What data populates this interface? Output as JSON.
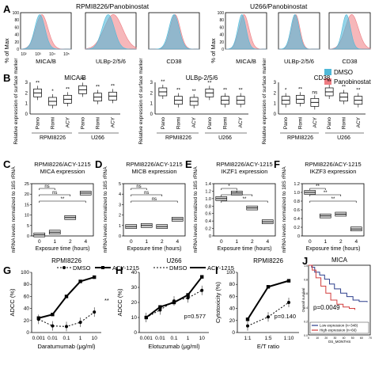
{
  "colors": {
    "dmso": "#4fb8d8",
    "pano": "#ee7c82",
    "drug": "#000000"
  },
  "panelA": {
    "letter": "A",
    "ylabel": "% of Max",
    "ticks_y": [
      "100",
      "80",
      "60",
      "40",
      "20",
      "0"
    ],
    "group1": {
      "title": "RPMI8226/Panobinostat",
      "markers": [
        "MICA/B",
        "ULBp-2/5/6",
        "CD38"
      ],
      "xticks": [
        "10²",
        "10³",
        "10⁴",
        "10⁵"
      ]
    },
    "group2": {
      "title": "U266/Panobinostat",
      "markers": [
        "MICA/B",
        "ULBp-2/5/6",
        "CD38"
      ]
    },
    "legend": [
      "DMSO",
      "Panobinostat"
    ]
  },
  "panelB": {
    "letter": "B",
    "ylabel": "Relative expression of surface marker",
    "categories": [
      "Pano",
      "Romi",
      "ACY",
      "Pano",
      "Romi",
      "ACY"
    ],
    "cell_lines": [
      "RPMI8226",
      "U266"
    ],
    "plots": [
      {
        "title": "MICA/B",
        "ylim": [
          0,
          3
        ],
        "ticks": [
          "3",
          "2",
          "1",
          "0"
        ],
        "medians": [
          2.0,
          1.2,
          1.4,
          2.3,
          1.6,
          1.7
        ],
        "sig": [
          "**",
          "*",
          "**",
          "**",
          "**",
          "**"
        ]
      },
      {
        "title": "ULBp-2/5/6",
        "ylim": [
          0,
          3
        ],
        "ticks": [
          "3",
          "2",
          "1",
          "0"
        ],
        "medians": [
          2.1,
          1.3,
          1.2,
          2.0,
          1.3,
          1.3
        ],
        "sig": [
          "**",
          "**",
          "**",
          "**",
          "**",
          "**"
        ]
      },
      {
        "title": "CD38",
        "ylim": [
          0,
          3
        ],
        "ticks": [
          "3",
          "2",
          "1",
          "0"
        ],
        "medians": [
          1.3,
          1.4,
          1.1,
          2.1,
          1.6,
          1.3
        ],
        "sig": [
          "*",
          "**",
          "ns",
          "**",
          "**",
          "**"
        ]
      }
    ]
  },
  "panelsCDEF": {
    "ylabel": "mRNA levels normalized to 18S rRNA",
    "xlabel": "Exposure time (hours)",
    "xcats": [
      "0",
      "1",
      "2",
      "4"
    ],
    "plots": [
      {
        "letter": "C",
        "title1": "RPMI8226/ACY-1215",
        "title2": "MICA expression",
        "ylim": [
          0,
          25
        ],
        "ticks": [
          "25",
          "20",
          "15",
          "10",
          "5",
          "0"
        ],
        "values": [
          0.5,
          1.8,
          8.8,
          20.5
        ],
        "brackets": [
          {
            "from": 0,
            "to": 1,
            "label": "ns"
          },
          {
            "from": 0,
            "to": 2,
            "label": "ns"
          },
          {
            "from": 0,
            "to": 3,
            "label": "**"
          }
        ]
      },
      {
        "letter": "D",
        "title1": "RPMI8226/ACY-1215",
        "title2": "MICB expression",
        "ylim": [
          0,
          5
        ],
        "ticks": [
          "5",
          "4",
          "3",
          "2",
          "1",
          "0"
        ],
        "values": [
          0.9,
          1.0,
          0.9,
          1.6
        ],
        "brackets": [
          {
            "from": 0,
            "to": 1,
            "label": "ns"
          },
          {
            "from": 0,
            "to": 2,
            "label": "ns"
          },
          {
            "from": 0,
            "to": 3,
            "label": "ns"
          }
        ]
      },
      {
        "letter": "E",
        "title1": "RPMI8226/ACY-1215",
        "title2": "IKZF1 expression",
        "ylim": [
          0,
          1.4
        ],
        "ticks": [
          "1.4",
          "1.2",
          "1.0",
          "0.8",
          "0.6",
          "0.4",
          "0.2",
          "0"
        ],
        "values": [
          1.0,
          1.15,
          0.75,
          0.38
        ],
        "brackets": [
          {
            "from": 0,
            "to": 1,
            "label": "*"
          },
          {
            "from": 0,
            "to": 2,
            "label": "*"
          },
          {
            "from": 0,
            "to": 3,
            "label": "**"
          }
        ]
      },
      {
        "letter": "F",
        "title1": "RPMI8226/ACY-1215",
        "title2": "IKZF3 expression",
        "ylim": [
          0,
          1.2
        ],
        "ticks": [
          "1.2",
          "1.0",
          "0.8",
          "0.6",
          "0.4",
          "0.2",
          "0"
        ],
        "values": [
          1.0,
          0.46,
          0.5,
          0.16
        ],
        "brackets": [
          {
            "from": 0,
            "to": 1,
            "label": "**"
          },
          {
            "from": 0,
            "to": 2,
            "label": "**"
          },
          {
            "from": 0,
            "to": 3,
            "label": "**"
          }
        ]
      }
    ]
  },
  "panelG": {
    "letter": "G",
    "title": "RPMI8226",
    "ylabel": "ADCC (%)",
    "xlabel": "Daratumumab (μg/ml)",
    "xcats": [
      "0.001",
      "0.01",
      "0.1",
      "1",
      "10"
    ],
    "ticks": [
      "100",
      "80",
      "60",
      "40",
      "20",
      "0"
    ],
    "ylim": [
      0,
      100
    ],
    "dmso": [
      22,
      11,
      10,
      17,
      34
    ],
    "acy": [
      24,
      30,
      60,
      85,
      92
    ],
    "legend": [
      "DMSO",
      "ACY-1215"
    ],
    "sig": "**"
  },
  "panelH": {
    "letter": "H",
    "title": "U266",
    "ylabel": "ADCC (%)",
    "xlabel": "Elotuzumab (μg/ml)",
    "xcats": [
      "0.001",
      "0.01",
      "0.1",
      "1",
      "10"
    ],
    "ticks": [
      "40",
      "30",
      "20",
      "10",
      "0"
    ],
    "ylim": [
      0,
      40
    ],
    "dmso": [
      10,
      15,
      21,
      23,
      28
    ],
    "acy": [
      10,
      17,
      20,
      25,
      37
    ],
    "pval": "p=0.577"
  },
  "panelI": {
    "letter": "I",
    "title": "RPMI8226",
    "ylabel": "Cytotoxicity (%)",
    "xlabel": "E/T ratio",
    "xcats": [
      "1:1",
      "1:5",
      "1:10"
    ],
    "ticks": [
      "100",
      "80",
      "60",
      "40",
      "20",
      "0"
    ],
    "ylim": [
      0,
      100
    ],
    "dmso": [
      11,
      26,
      50
    ],
    "acy": [
      22,
      76,
      86
    ],
    "pval": "p=0.140"
  },
  "panelJ": {
    "letter": "J",
    "title": "MICA",
    "ylabel": "Overall survival",
    "xlabel": "OS_MONTHS",
    "pval": "p=0.0049",
    "legend": [
      "Low expression (n=348)",
      "High expression (n=66)"
    ],
    "xticks": [
      "0",
      "10",
      "20",
      "30",
      "40",
      "50",
      "60",
      "70"
    ],
    "yticks": [
      "1.0",
      "0.8",
      "0.6",
      "0.4",
      "0.2",
      "0.0"
    ]
  }
}
